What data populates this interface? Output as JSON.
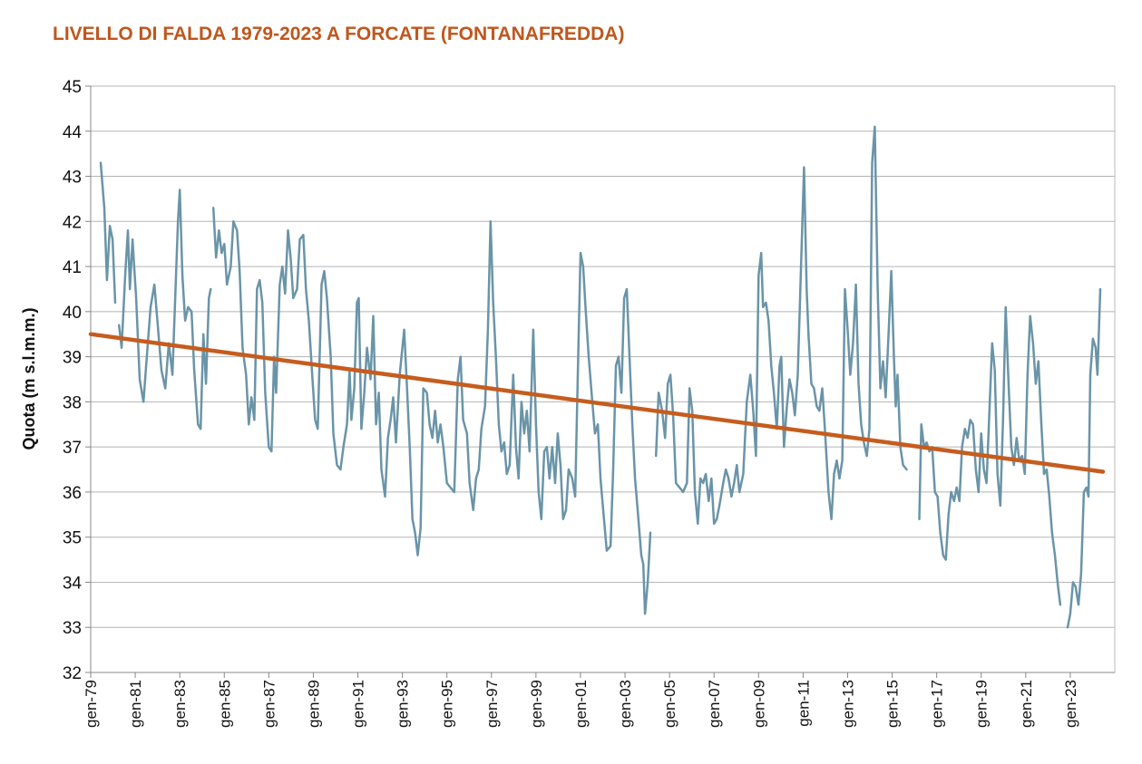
{
  "chart_data": {
    "type": "line",
    "title": "LIVELLO DI FALDA 1979-2023 A FORCATE (FONTANAFREDDA)",
    "y_label": "Quota (m s.l.m.m.)",
    "xlim": [
      1979,
      2025
    ],
    "ylim": [
      32,
      45
    ],
    "yticks": [
      32,
      33,
      34,
      35,
      36,
      37,
      38,
      39,
      40,
      41,
      42,
      43,
      44,
      45
    ],
    "xticks": [
      {
        "value": 1979,
        "label": "gen-79"
      },
      {
        "value": 1981,
        "label": "gen-81"
      },
      {
        "value": 1983,
        "label": "gen-83"
      },
      {
        "value": 1985,
        "label": "gen-85"
      },
      {
        "value": 1987,
        "label": "gen-87"
      },
      {
        "value": 1989,
        "label": "gen-89"
      },
      {
        "value": 1991,
        "label": "gen-91"
      },
      {
        "value": 1993,
        "label": "gen-93"
      },
      {
        "value": 1995,
        "label": "gen-95"
      },
      {
        "value": 1997,
        "label": "gen-97"
      },
      {
        "value": 1999,
        "label": "gen-99"
      },
      {
        "value": 2001,
        "label": "gen-01"
      },
      {
        "value": 2003,
        "label": "gen-03"
      },
      {
        "value": 2005,
        "label": "gen-05"
      },
      {
        "value": 2007,
        "label": "gen-07"
      },
      {
        "value": 2009,
        "label": "gen-09"
      },
      {
        "value": 2011,
        "label": "gen-11"
      },
      {
        "value": 2013,
        "label": "gen-13"
      },
      {
        "value": 2015,
        "label": "gen-15"
      },
      {
        "value": 2017,
        "label": "gen-17"
      },
      {
        "value": 2019,
        "label": "gen-19"
      },
      {
        "value": 2021,
        "label": "gen-21"
      },
      {
        "value": 2023,
        "label": "gen-23"
      }
    ],
    "grid": true,
    "series": [
      {
        "color": "#6a94a8",
        "x": [
          1979.45,
          1979.61,
          1979.73,
          1979.86,
          1979.98,
          1980.1,
          1980.18,
          1980.27,
          1980.39,
          1980.55,
          1980.67,
          1980.76,
          1980.88,
          1981.04,
          1981.2,
          1981.37,
          1981.49,
          1981.69,
          1981.86,
          1981.98,
          1982.18,
          1982.35,
          1982.51,
          1982.67,
          1982.92,
          1983.0,
          1983.12,
          1983.24,
          1983.37,
          1983.53,
          1983.65,
          1983.82,
          1983.94,
          1984.06,
          1984.18,
          1984.31,
          1984.39,
          1984.45,
          1984.51,
          1984.63,
          1984.76,
          1984.88,
          1985.0,
          1985.12,
          1985.29,
          1985.41,
          1985.57,
          1985.69,
          1985.82,
          1985.98,
          1986.1,
          1986.22,
          1986.35,
          1986.47,
          1986.59,
          1986.71,
          1986.84,
          1987.0,
          1987.12,
          1987.24,
          1987.33,
          1987.49,
          1987.61,
          1987.73,
          1987.86,
          1987.98,
          1988.1,
          1988.27,
          1988.39,
          1988.55,
          1988.67,
          1988.8,
          1988.96,
          1989.08,
          1989.2,
          1989.37,
          1989.49,
          1989.61,
          1989.78,
          1989.9,
          1990.06,
          1990.22,
          1990.35,
          1990.51,
          1990.63,
          1990.71,
          1990.84,
          1990.96,
          1991.04,
          1991.16,
          1991.29,
          1991.41,
          1991.57,
          1991.69,
          1991.82,
          1991.94,
          1992.06,
          1992.22,
          1992.35,
          1992.47,
          1992.59,
          1992.71,
          1992.88,
          1992.96,
          1993.08,
          1993.2,
          1993.33,
          1993.45,
          1993.57,
          1993.69,
          1993.82,
          1993.94,
          1994.1,
          1994.22,
          1994.35,
          1994.47,
          1994.59,
          1994.71,
          1994.84,
          1995.0,
          1995.16,
          1995.33,
          1995.49,
          1995.61,
          1995.73,
          1995.9,
          1996.02,
          1996.18,
          1996.31,
          1996.43,
          1996.55,
          1996.71,
          1996.84,
          1996.96,
          1997.08,
          1997.2,
          1997.33,
          1997.45,
          1997.57,
          1997.69,
          1997.82,
          1997.98,
          1998.1,
          1998.22,
          1998.35,
          1998.47,
          1998.59,
          1998.71,
          1998.88,
          1999.0,
          1999.12,
          1999.24,
          1999.37,
          1999.49,
          1999.61,
          1999.73,
          1999.86,
          1999.98,
          2000.1,
          2000.22,
          2000.35,
          2000.47,
          2000.63,
          2000.76,
          2000.88,
          2001.0,
          2001.12,
          2001.24,
          2001.37,
          2001.53,
          2001.65,
          2001.78,
          2001.9,
          2002.02,
          2002.18,
          2002.35,
          2002.47,
          2002.59,
          2002.71,
          2002.84,
          2002.96,
          2003.08,
          2003.2,
          2003.33,
          2003.45,
          2003.57,
          2003.73,
          2003.82,
          2003.9,
          2004.02,
          2004.14,
          2004.27,
          2004.39,
          2004.51,
          2004.67,
          2004.8,
          2004.92,
          2005.04,
          2005.16,
          2005.29,
          2005.45,
          2005.61,
          2005.78,
          2005.9,
          2006.02,
          2006.14,
          2006.27,
          2006.39,
          2006.51,
          2006.63,
          2006.76,
          2006.88,
          2007.0,
          2007.12,
          2007.24,
          2007.41,
          2007.53,
          2007.65,
          2007.78,
          2007.9,
          2008.02,
          2008.14,
          2008.31,
          2008.47,
          2008.63,
          2008.76,
          2008.88,
          2009.0,
          2009.12,
          2009.2,
          2009.33,
          2009.45,
          2009.57,
          2009.69,
          2009.82,
          2009.94,
          2010.02,
          2010.14,
          2010.27,
          2010.39,
          2010.51,
          2010.63,
          2010.76,
          2010.92,
          2011.04,
          2011.16,
          2011.24,
          2011.37,
          2011.49,
          2011.61,
          2011.73,
          2011.86,
          2011.98,
          2012.14,
          2012.27,
          2012.39,
          2012.51,
          2012.63,
          2012.76,
          2012.88,
          2013.0,
          2013.12,
          2013.24,
          2013.37,
          2013.49,
          2013.61,
          2013.73,
          2013.86,
          2013.98,
          2014.1,
          2014.22,
          2014.35,
          2014.47,
          2014.59,
          2014.71,
          2014.84,
          2014.96,
          2015.08,
          2015.16,
          2015.24,
          2015.37,
          2015.49,
          2015.65,
          2015.94,
          2016.22,
          2016.31,
          2016.43,
          2016.55,
          2016.67,
          2016.8,
          2016.92,
          2017.04,
          2017.16,
          2017.29,
          2017.41,
          2017.53,
          2017.65,
          2017.78,
          2017.9,
          2018.02,
          2018.14,
          2018.27,
          2018.39,
          2018.51,
          2018.63,
          2018.76,
          2018.88,
          2019.0,
          2019.12,
          2019.24,
          2019.37,
          2019.49,
          2019.61,
          2019.73,
          2019.86,
          2019.98,
          2020.1,
          2020.22,
          2020.35,
          2020.47,
          2020.59,
          2020.71,
          2020.84,
          2020.96,
          2021.08,
          2021.2,
          2021.33,
          2021.45,
          2021.57,
          2021.69,
          2021.82,
          2021.94,
          2022.06,
          2022.18,
          2022.31,
          2022.43,
          2022.55,
          2022.71,
          2022.88,
          2023.0,
          2023.12,
          2023.24,
          2023.37,
          2023.49,
          2023.61,
          2023.73,
          2023.82,
          2023.9,
          2024.02,
          2024.14,
          2024.22,
          2024.35
        ],
        "values": [
          43.3,
          42.3,
          40.7,
          41.9,
          41.6,
          40.2,
          null,
          39.7,
          39.2,
          40.8,
          41.8,
          40.5,
          41.6,
          40.3,
          38.5,
          38.0,
          38.8,
          40.1,
          40.6,
          39.9,
          38.7,
          38.3,
          39.3,
          38.6,
          42.0,
          42.7,
          40.8,
          39.8,
          40.1,
          40.0,
          38.7,
          37.5,
          37.4,
          39.5,
          38.4,
          40.3,
          40.5,
          null,
          42.3,
          41.2,
          41.8,
          41.3,
          41.5,
          40.6,
          41.0,
          42.0,
          41.8,
          40.9,
          39.2,
          38.6,
          37.5,
          38.1,
          37.6,
          40.5,
          40.7,
          40.2,
          38.2,
          37.0,
          36.9,
          39.0,
          38.2,
          40.6,
          41.0,
          40.4,
          41.8,
          41.2,
          40.3,
          40.5,
          41.6,
          41.7,
          40.5,
          39.8,
          38.5,
          37.6,
          37.4,
          40.6,
          40.9,
          40.3,
          39.0,
          37.3,
          36.6,
          36.5,
          37.0,
          37.5,
          38.7,
          37.6,
          38.3,
          40.2,
          40.3,
          37.4,
          38.2,
          39.2,
          38.5,
          39.9,
          37.5,
          38.2,
          36.5,
          35.9,
          37.2,
          37.6,
          38.1,
          37.1,
          38.6,
          39.0,
          39.6,
          38.4,
          37.0,
          35.4,
          35.1,
          34.6,
          35.2,
          38.3,
          38.2,
          37.5,
          37.2,
          37.8,
          37.1,
          37.5,
          37.0,
          36.2,
          36.1,
          36.0,
          38.5,
          39.0,
          37.6,
          37.3,
          36.2,
          35.6,
          36.3,
          36.5,
          37.4,
          37.9,
          39.6,
          42.0,
          40.2,
          39.0,
          37.5,
          36.9,
          37.1,
          36.4,
          36.6,
          38.6,
          37.0,
          36.3,
          38.0,
          37.3,
          37.8,
          36.9,
          39.6,
          37.5,
          36.0,
          35.4,
          36.9,
          37.0,
          36.3,
          37.0,
          36.2,
          37.3,
          36.6,
          35.4,
          35.6,
          36.5,
          36.3,
          35.9,
          38.6,
          41.3,
          41.0,
          40.0,
          39.0,
          38.0,
          37.3,
          37.5,
          36.3,
          35.6,
          34.7,
          34.8,
          36.5,
          38.8,
          39.0,
          38.2,
          40.3,
          40.5,
          39.0,
          37.5,
          36.3,
          35.6,
          34.6,
          34.4,
          33.3,
          34.0,
          35.1,
          null,
          36.8,
          38.2,
          37.8,
          37.2,
          38.4,
          38.6,
          37.7,
          36.2,
          36.1,
          36.0,
          36.2,
          38.3,
          37.8,
          36.0,
          35.3,
          36.3,
          36.2,
          36.4,
          35.8,
          36.3,
          35.3,
          35.4,
          35.7,
          36.2,
          36.5,
          36.3,
          35.9,
          36.2,
          36.6,
          36.0,
          36.4,
          38.0,
          38.6,
          37.8,
          36.8,
          40.8,
          41.3,
          40.1,
          40.2,
          39.8,
          38.8,
          38.2,
          37.4,
          38.8,
          39.0,
          37.0,
          37.9,
          38.5,
          38.2,
          37.7,
          38.6,
          41.2,
          43.2,
          40.5,
          39.5,
          38.4,
          38.3,
          37.9,
          37.8,
          38.3,
          37.4,
          36.0,
          35.4,
          36.4,
          36.7,
          36.3,
          36.7,
          40.5,
          39.6,
          38.6,
          39.3,
          40.6,
          38.4,
          37.5,
          37.1,
          36.8,
          37.4,
          43.3,
          44.1,
          40.5,
          38.3,
          38.9,
          38.1,
          39.5,
          40.9,
          39.0,
          37.9,
          38.6,
          37.0,
          36.6,
          36.5,
          null,
          35.4,
          37.5,
          37.0,
          37.1,
          36.9,
          37.0,
          36.0,
          35.9,
          35.1,
          34.6,
          34.5,
          35.5,
          36.0,
          35.8,
          36.1,
          35.8,
          37.0,
          37.4,
          37.2,
          37.6,
          37.5,
          36.5,
          36.0,
          37.3,
          36.5,
          36.2,
          37.8,
          39.3,
          38.7,
          36.4,
          35.7,
          37.6,
          40.1,
          38.5,
          37.0,
          36.6,
          37.2,
          36.7,
          36.8,
          36.4,
          38.6,
          39.9,
          39.3,
          38.4,
          38.9,
          37.6,
          36.4,
          36.5,
          35.9,
          35.1,
          34.6,
          34.0,
          33.5,
          null,
          33.0,
          33.3,
          34.0,
          33.9,
          33.5,
          34.2,
          36.0,
          36.1,
          35.9,
          38.6,
          39.4,
          39.2,
          38.6,
          40.5
        ]
      },
      {
        "color": "#c65c1e",
        "x": [
          1979,
          2024.47
        ],
        "values": [
          39.5,
          36.45
        ]
      }
    ]
  }
}
